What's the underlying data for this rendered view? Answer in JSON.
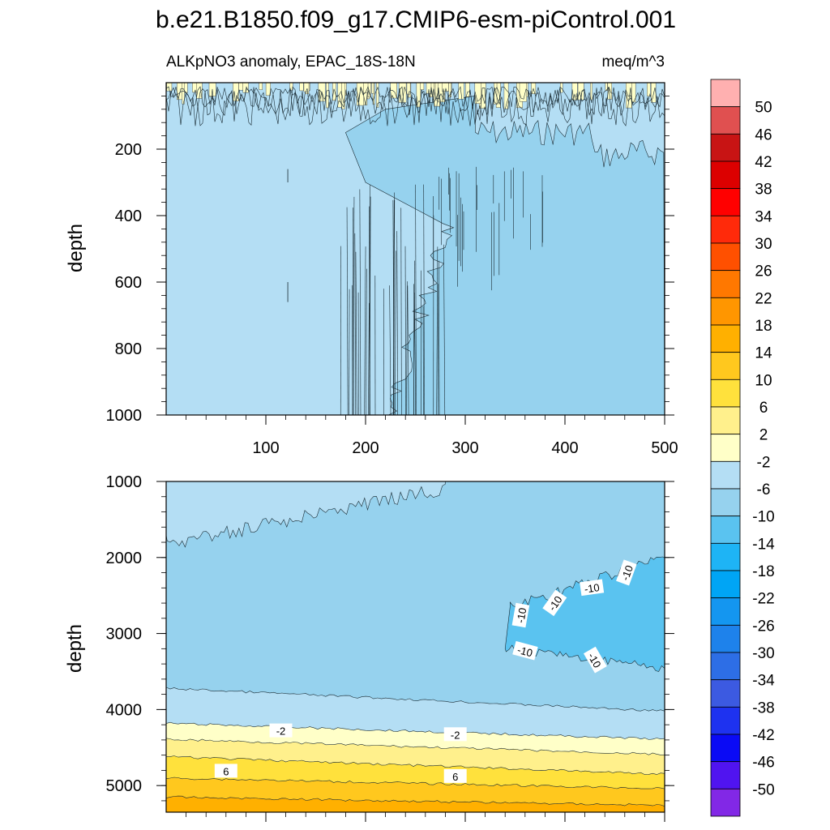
{
  "chart_data": {
    "type": "contour",
    "title": "b.e21.B1850.f09_g17.CMIP6-esm-piControl.001",
    "panels": [
      {
        "id": "upper",
        "left_label": "ALKpNO3 anomaly, EPAC_18S-18N",
        "right_label": "meq/m^3",
        "ylabel": "depth",
        "xlabel": "",
        "xlim": [
          0,
          500
        ],
        "ylim": [
          1000,
          0
        ],
        "x_ticks": [
          "100",
          "200",
          "300",
          "400",
          "500"
        ],
        "x_tick_values": [
          100,
          200,
          300,
          400,
          500
        ],
        "y_ticks": [
          "200",
          "400",
          "600",
          "800",
          "1000"
        ],
        "y_tick_values": [
          200,
          400,
          600,
          800,
          1000
        ],
        "regions": [
          {
            "level_range": [
              -6,
              -2
            ],
            "description": "x=0-500, depth 0-1000 left/upper part"
          },
          {
            "level_range": [
              -10,
              -6
            ],
            "description": "x>=200, depth>=300; and x>=310 below 150 m"
          },
          {
            "level_range": [
              -2,
              2
            ],
            "description": "thin near-surface patches, depth<70"
          }
        ],
        "contour_labels": []
      },
      {
        "id": "lower",
        "ylabel": "depth",
        "xlim": [
          0,
          500
        ],
        "ylim": [
          5350,
          1000
        ],
        "x_ticks": [],
        "y_ticks": [
          "1000",
          "2000",
          "3000",
          "4000",
          "5000"
        ],
        "y_tick_values": [
          1000,
          2000,
          3000,
          4000,
          5000
        ],
        "regions": [
          {
            "level_range": [
              -10,
              -6
            ],
            "description": "depth 1000-3700 (main body)"
          },
          {
            "level_range": [
              -14,
              -10
            ],
            "description": "wedge x 340-500, depth 2000-3500"
          },
          {
            "level_range": [
              -6,
              -2
            ],
            "description": "depth 3700-4300 band and upper-left above 1700"
          },
          {
            "level_range": [
              -2,
              2
            ],
            "description": "depth 4200-4600"
          },
          {
            "level_range": [
              2,
              6
            ],
            "description": "depth 4600-4850"
          },
          {
            "level_range": [
              6,
              10
            ],
            "description": "depth 4850-5100"
          },
          {
            "level_range": [
              10,
              14
            ],
            "description": "depth 5100-5300"
          },
          {
            "level_range": [
              14,
              18
            ],
            "description": "bottom below 5300"
          }
        ],
        "contour_labels": [
          "-10",
          "-10",
          "-10",
          "-10",
          "-10",
          "-10",
          "-2",
          "-2",
          "6",
          "6"
        ]
      }
    ],
    "colorbar": {
      "levels": [
        "50",
        "46",
        "42",
        "38",
        "34",
        "30",
        "26",
        "22",
        "18",
        "14",
        "10",
        "6",
        "2",
        "-2",
        "-6",
        "-10",
        "-14",
        "-18",
        "-22",
        "-26",
        "-30",
        "-34",
        "-38",
        "-42",
        "-46",
        "-50"
      ],
      "colors_top_to_bottom": [
        "#ffb0b0",
        "#e05050",
        "#c81414",
        "#dc0000",
        "#ff0000",
        "#ff2a0a",
        "#ff5000",
        "#ff7800",
        "#ff9600",
        "#ffb000",
        "#ffc81e",
        "#ffe13c",
        "#fff08c",
        "#ffffc8",
        "#b4def4",
        "#96d2ee",
        "#5ac3f0",
        "#1eb4f5",
        "#00a5f5",
        "#1496f0",
        "#1e82eb",
        "#2d6ee6",
        "#3c5ae1",
        "#1e32f0",
        "#0a0af5",
        "#5014f0",
        "#8228e6"
      ]
    }
  }
}
